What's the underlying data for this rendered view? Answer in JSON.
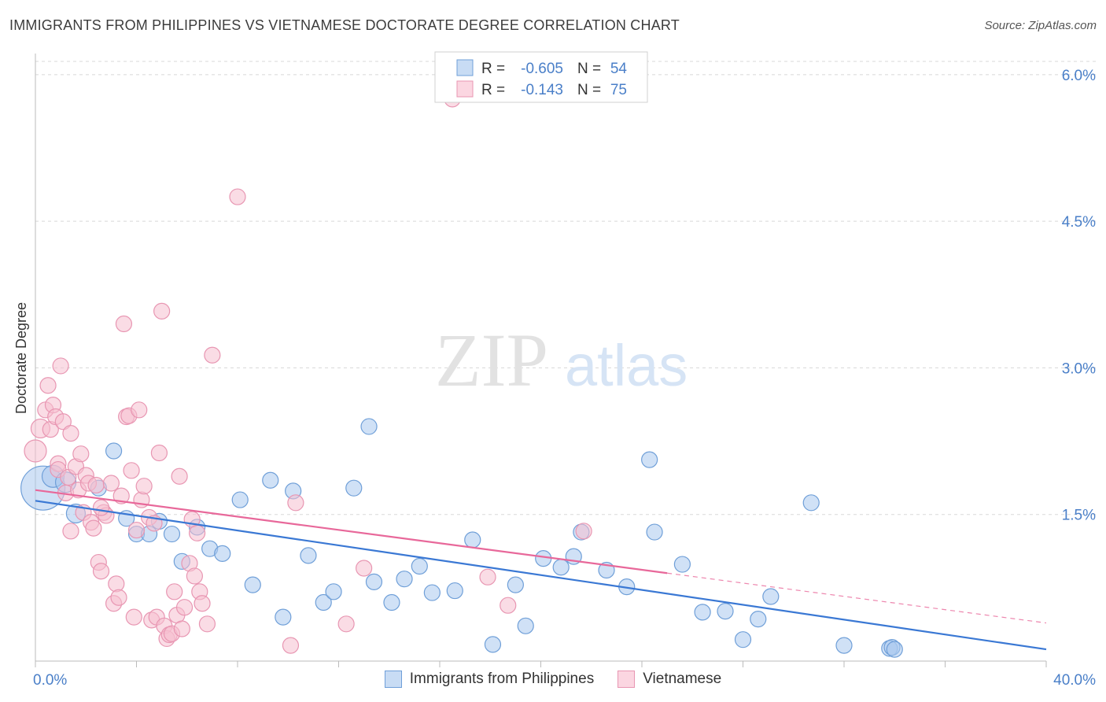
{
  "title": "IMMIGRANTS FROM PHILIPPINES VS VIETNAMESE DOCTORATE DEGREE CORRELATION CHART",
  "source": "Source: ZipAtlas.com",
  "watermark": {
    "zip": "ZIP",
    "atlas": "atlas"
  },
  "colors": {
    "blue_fill": "#a9c8ee",
    "blue_stroke": "#6f9fd8",
    "blue_line": "#3a78d4",
    "pink_fill": "#f6bfd0",
    "pink_stroke": "#e896b2",
    "pink_line": "#e8689a",
    "tick_label": "#4a7fc8",
    "grid": "#d8d8d8"
  },
  "legend": {
    "rows": [
      {
        "r_label": "R =",
        "r_value": "-0.605",
        "n_label": "N =",
        "n_value": "54"
      },
      {
        "r_label": "R =",
        "r_value": "-0.143",
        "n_label": "N =",
        "n_value": "75"
      }
    ]
  },
  "chart_data": {
    "type": "scatter",
    "title": "IMMIGRANTS FROM PHILIPPINES VS VIETNAMESE DOCTORATE DEGREE CORRELATION CHART",
    "xlabel": "",
    "ylabel": "Doctorate Degree",
    "xlim": [
      0,
      40
    ],
    "ylim": [
      0,
      6.2
    ],
    "x_tick_labels": {
      "min": "0.0%",
      "max": "40.0%"
    },
    "y_ticks": [
      {
        "value": 1.5,
        "label": "1.5%"
      },
      {
        "value": 3.0,
        "label": "3.0%"
      },
      {
        "value": 4.5,
        "label": "4.5%"
      },
      {
        "value": 6.0,
        "label": "6.0%"
      }
    ],
    "grid": true,
    "legend_position": "top-center",
    "series": [
      {
        "name": "Immigrants from Philippines",
        "color": "blue",
        "trend": {
          "x0": 0,
          "y0": 1.64,
          "x1": 40,
          "y1": 0.12
        },
        "points": [
          [
            0.3,
            1.77,
            28
          ],
          [
            0.7,
            1.89,
            14
          ],
          [
            1.2,
            1.83,
            13
          ],
          [
            1.6,
            1.51,
            12
          ],
          [
            2.5,
            1.77,
            10
          ],
          [
            3.1,
            2.15,
            10
          ],
          [
            3.6,
            1.46,
            10
          ],
          [
            4.0,
            1.3,
            10
          ],
          [
            4.5,
            1.3,
            10
          ],
          [
            4.9,
            1.43,
            10
          ],
          [
            5.4,
            1.3,
            10
          ],
          [
            5.8,
            1.02,
            10
          ],
          [
            6.4,
            1.37,
            10
          ],
          [
            6.9,
            1.15,
            10
          ],
          [
            7.4,
            1.1,
            10
          ],
          [
            8.1,
            1.65,
            10
          ],
          [
            8.6,
            0.78,
            10
          ],
          [
            9.3,
            1.85,
            10
          ],
          [
            9.8,
            0.45,
            10
          ],
          [
            10.2,
            1.74,
            10
          ],
          [
            10.8,
            1.08,
            10
          ],
          [
            11.4,
            0.6,
            10
          ],
          [
            11.8,
            0.71,
            10
          ],
          [
            12.6,
            1.77,
            10
          ],
          [
            13.2,
            2.4,
            10
          ],
          [
            13.4,
            0.81,
            10
          ],
          [
            14.1,
            0.6,
            10
          ],
          [
            14.6,
            0.84,
            10
          ],
          [
            15.2,
            0.97,
            10
          ],
          [
            15.7,
            0.7,
            10
          ],
          [
            16.6,
            0.72,
            10
          ],
          [
            17.3,
            1.24,
            10
          ],
          [
            18.1,
            0.17,
            10
          ],
          [
            19.0,
            0.78,
            10
          ],
          [
            19.4,
            0.36,
            10
          ],
          [
            20.1,
            1.05,
            10
          ],
          [
            20.8,
            0.96,
            10
          ],
          [
            21.6,
            1.32,
            10
          ],
          [
            21.3,
            1.07,
            10
          ],
          [
            22.6,
            0.93,
            10
          ],
          [
            23.4,
            0.76,
            10
          ],
          [
            24.5,
            1.32,
            10
          ],
          [
            24.3,
            2.06,
            10
          ],
          [
            25.6,
            0.99,
            10
          ],
          [
            26.4,
            0.5,
            10
          ],
          [
            27.3,
            0.51,
            10
          ],
          [
            28.0,
            0.22,
            10
          ],
          [
            28.6,
            0.43,
            10
          ],
          [
            29.1,
            0.66,
            10
          ],
          [
            30.7,
            1.62,
            10
          ],
          [
            32.0,
            0.16,
            10
          ],
          [
            33.8,
            0.13,
            10
          ],
          [
            33.9,
            0.14,
            10
          ],
          [
            34.0,
            0.12,
            10
          ]
        ]
      },
      {
        "name": "Vietnamese",
        "color": "pink",
        "trend": {
          "x0": 0,
          "y0": 1.75,
          "x1": 25,
          "y1": 0.9
        },
        "trend_dashed": {
          "x0": 25,
          "y0": 0.9,
          "x1": 40,
          "y1": 0.39
        },
        "points": [
          [
            0.0,
            2.15,
            14
          ],
          [
            0.2,
            2.38,
            12
          ],
          [
            0.4,
            2.57,
            10
          ],
          [
            0.5,
            2.82,
            10
          ],
          [
            0.6,
            2.37,
            10
          ],
          [
            0.7,
            2.62,
            10
          ],
          [
            0.8,
            2.5,
            10
          ],
          [
            0.9,
            2.02,
            10
          ],
          [
            0.9,
            1.96,
            10
          ],
          [
            1.0,
            3.02,
            10
          ],
          [
            1.1,
            2.45,
            10
          ],
          [
            1.2,
            1.72,
            10
          ],
          [
            1.3,
            1.88,
            10
          ],
          [
            1.4,
            2.33,
            10
          ],
          [
            1.4,
            1.33,
            10
          ],
          [
            1.6,
            1.99,
            10
          ],
          [
            1.7,
            1.75,
            10
          ],
          [
            1.8,
            2.12,
            10
          ],
          [
            1.9,
            1.52,
            10
          ],
          [
            2.0,
            1.9,
            10
          ],
          [
            2.1,
            1.82,
            10
          ],
          [
            2.2,
            1.42,
            10
          ],
          [
            2.3,
            1.36,
            10
          ],
          [
            2.4,
            1.8,
            10
          ],
          [
            2.5,
            1.01,
            10
          ],
          [
            2.6,
            0.92,
            10
          ],
          [
            2.7,
            1.52,
            10
          ],
          [
            2.8,
            1.49,
            10
          ],
          [
            2.6,
            1.57,
            10
          ],
          [
            3.0,
            1.82,
            10
          ],
          [
            3.1,
            0.59,
            10
          ],
          [
            3.2,
            0.79,
            10
          ],
          [
            3.3,
            0.65,
            10
          ],
          [
            3.4,
            1.69,
            10
          ],
          [
            3.5,
            3.45,
            10
          ],
          [
            3.6,
            2.5,
            10
          ],
          [
            3.7,
            2.51,
            10
          ],
          [
            3.8,
            1.95,
            10
          ],
          [
            3.9,
            0.45,
            10
          ],
          [
            4.0,
            1.34,
            10
          ],
          [
            4.1,
            2.57,
            10
          ],
          [
            4.2,
            1.65,
            10
          ],
          [
            4.3,
            1.79,
            10
          ],
          [
            4.5,
            1.47,
            10
          ],
          [
            4.6,
            0.42,
            10
          ],
          [
            4.7,
            1.41,
            10
          ],
          [
            4.8,
            0.45,
            10
          ],
          [
            4.9,
            2.13,
            10
          ],
          [
            5.0,
            3.58,
            10
          ],
          [
            5.1,
            0.36,
            10
          ],
          [
            5.2,
            0.23,
            10
          ],
          [
            5.3,
            0.27,
            10
          ],
          [
            5.4,
            0.28,
            10
          ],
          [
            5.5,
            0.71,
            10
          ],
          [
            5.6,
            0.47,
            10
          ],
          [
            5.7,
            1.89,
            10
          ],
          [
            5.8,
            0.33,
            10
          ],
          [
            5.9,
            0.55,
            10
          ],
          [
            6.1,
            1.0,
            10
          ],
          [
            6.2,
            1.45,
            10
          ],
          [
            6.3,
            0.87,
            10
          ],
          [
            6.4,
            1.31,
            10
          ],
          [
            6.5,
            0.71,
            10
          ],
          [
            6.6,
            0.59,
            10
          ],
          [
            6.8,
            0.38,
            10
          ],
          [
            7.0,
            3.13,
            10
          ],
          [
            8.0,
            4.75,
            10
          ],
          [
            10.1,
            0.16,
            10
          ],
          [
            10.3,
            1.62,
            10
          ],
          [
            12.3,
            0.38,
            10
          ],
          [
            13.0,
            0.95,
            10
          ],
          [
            16.5,
            5.75,
            10
          ],
          [
            17.9,
            0.86,
            10
          ],
          [
            18.7,
            0.57,
            10
          ],
          [
            21.7,
            1.33,
            10
          ]
        ]
      }
    ]
  },
  "bottom_legend": [
    {
      "label": "Immigrants from Philippines"
    },
    {
      "label": "Vietnamese"
    }
  ]
}
